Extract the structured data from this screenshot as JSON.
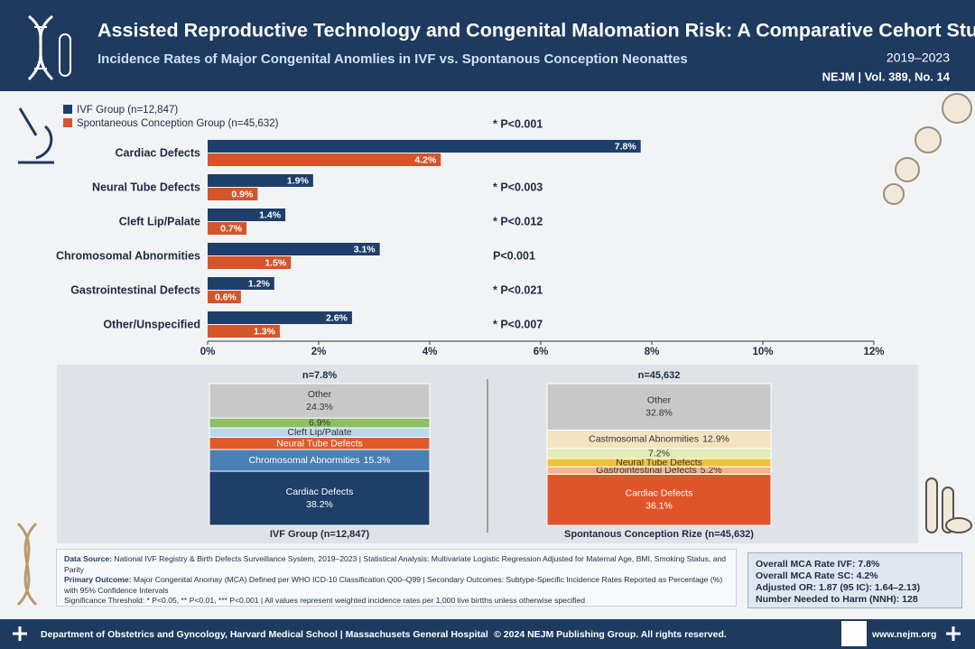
{
  "header": {
    "title": "Assisted Reproductive Technology and Congenital Malomation Risk: A Comparative Cehort Study",
    "subtitle": "Incidence Rates of Major Congenital Anomlies in IVF vs. Spontanous Conception Neonattes",
    "years": "2019–2023",
    "journal": "NEJM | Vol. 389, No. 14"
  },
  "chart_data": [
    {
      "type": "bar",
      "orientation": "horizontal",
      "categories": [
        "Cardiac Defects",
        "Neural Tube Defects",
        "Cleft Lip/Palate",
        "Chromosomal Abnormities",
        "Gastrointestinal Defects",
        "Other/Unspecified"
      ],
      "series": [
        {
          "name": "IVF Group (n=12,847)",
          "color": "#1f3f6b",
          "values": [
            7.8,
            1.9,
            1.4,
            3.1,
            1.2,
            2.6
          ],
          "value_labels": [
            "7.8%",
            "1.9%",
            "1.4%",
            "3.1%",
            "1.2%",
            "2.6%"
          ]
        },
        {
          "name": "Spontaneous Conception Group (n=45,632)",
          "color": "#d4552b",
          "values": [
            4.2,
            0.9,
            0.7,
            1.5,
            0.6,
            1.3
          ],
          "value_labels": [
            "4.2%",
            "0.9%",
            "0.7%",
            "1.5%",
            "0.6%",
            "1.3%"
          ]
        }
      ],
      "p_values": [
        "* P<0.001",
        "* P<0.003",
        "* P<0.012",
        "P<0.001",
        "* P<0.021",
        "* P<0.007"
      ],
      "xlim": [
        0,
        12
      ],
      "xticks": [
        {
          "value": 0,
          "label": "0%"
        },
        {
          "value": 2,
          "label": "2%"
        },
        {
          "value": 4,
          "label": "4%"
        },
        {
          "value": 6,
          "label": "6%"
        },
        {
          "value": 8,
          "label": "8%"
        },
        {
          "value": 10,
          "label": "10%"
        },
        {
          "value": 12,
          "label": "12%"
        }
      ],
      "legend": "top-left"
    },
    {
      "type": "stacked-bar",
      "title": "n=7.8%",
      "xlabel": "IVF Group (n=12,847)",
      "segments": [
        {
          "name": "Cardiac Defects",
          "value": 38.2,
          "value_label": "38.2%",
          "color": "#1f3f6b"
        },
        {
          "name": "Chromosomal Abnormities",
          "value": 15.3,
          "value_label": "15.3%",
          "color": "#4a7fb5"
        },
        {
          "name": "Neural Tube Defects",
          "value": 8.6,
          "color": "#e05a2b"
        },
        {
          "name": "Cleft Lip/Palate",
          "value": 6.7,
          "color": "#b9d8ee"
        },
        {
          "name": null,
          "value": 6.9,
          "value_label": "6.9%",
          "color": "#8dc063"
        },
        {
          "name": "Other",
          "value": 24.3,
          "value_label": "24.3%",
          "color": "#c8c8c8"
        }
      ]
    },
    {
      "type": "stacked-bar",
      "title": "n=45,632",
      "xlabel": "Spontanous Conception Rize  (n=45,632)",
      "segments": [
        {
          "name": "Cardiac Defects",
          "value": 36.1,
          "value_label": "36.1%",
          "color": "#e0542a"
        },
        {
          "name": "Gastrointestinal Defects",
          "value": 5.2,
          "value_label": "5.2%",
          "color": "#f2b48e"
        },
        {
          "name": "Neural Tube Defects",
          "value": 5.8,
          "color": "#f0c23a"
        },
        {
          "name": null,
          "value": 7.2,
          "value_label": "7.2%",
          "color": "#e3ecb4"
        },
        {
          "name": "Castmosomal Abnormities",
          "value": 12.9,
          "value_label": "12.9%",
          "color": "#f4e3c0"
        },
        {
          "name": "Other",
          "value": 32.8,
          "value_label": "32.8%",
          "color": "#c8c8c8"
        }
      ]
    }
  ],
  "notes": [
    {
      "label": "Data Source:",
      "text": "National IVF Registry & Birth Defects Surveillance System, 2019–2023 | Statistical Analysis: Multivariate Logistic Regression Adjusted for Maternal Age, BMI, Smoking Status, and Parity"
    },
    {
      "label": "Primary Outcome:",
      "text": "Major Congenital Anomay (MCA) Defined per WHO ICD-10 Classification Q00–Q99 | Secondary Outcomes: Subtype-Specific Incidence Rates Reported as Percentage (%) with 95% Confidence Intervals"
    },
    {
      "label": "",
      "text": "Significance Threshold: * P<0.05, ** P<0.01, *** P<0.001 | All values represent weighted incidence rates per 1,000 live birtths unless otherwise specified"
    }
  ],
  "summary": [
    "Overall MCA Rate IVF: 7.8%",
    "Overall MCA Rate SC: 4.2%",
    "Adjusted OR: 1.87 (95 IC): 1.64–2.13)",
    "Number Needed to Harm (NNH): 128"
  ],
  "footer": {
    "institution": "Department of Obstetrics and Gyncology, Harvard Medical School | Massachusets General Hospital",
    "copyright": "© 2024 NEJM Publishing Group. All rights reserved.",
    "url": "www.nejm.org"
  }
}
